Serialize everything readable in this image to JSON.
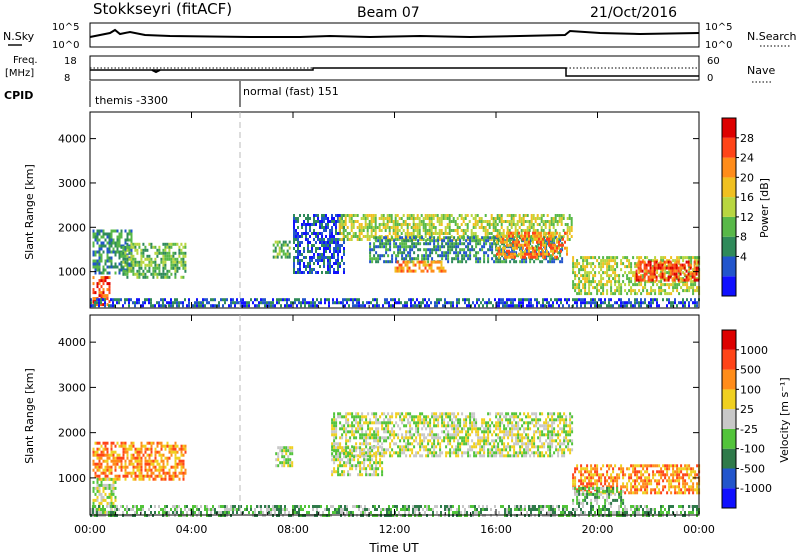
{
  "header": {
    "station": "Stokkseyri (fitACF)",
    "beam": "Beam 07",
    "date": "21/Oct/2016"
  },
  "sky_panel": {
    "left_label": "N.Sky",
    "left_ticks": [
      "10^5",
      "10^0"
    ],
    "right_ticks": [
      "10^5",
      "10^0"
    ],
    "right_label": "N.Search"
  },
  "freq_panel": {
    "left_label_1": "Freq.",
    "left_label_2": "[MHz]",
    "left_ticks": [
      "18",
      "8"
    ],
    "right_ticks": [
      "60",
      "0"
    ],
    "right_label": "Nave"
  },
  "cpid": {
    "label": "CPID",
    "segments": [
      {
        "label": "themis -3300",
        "start_h": 0,
        "end_h": 6
      },
      {
        "label": "normal (fast) 151",
        "start_h": 6,
        "end_h": 24
      }
    ]
  },
  "chart_data": [
    {
      "type": "heatmap",
      "panel": "power",
      "ylabel": "Slant Range [km]",
      "yticks": [
        1000,
        2000,
        3000,
        4000
      ],
      "xticks": [
        "00:00",
        "04:00",
        "08:00",
        "12:00",
        "16:00",
        "20:00",
        "00:00"
      ],
      "xrange_hours": [
        0,
        24
      ],
      "yrange_km": [
        180,
        4600
      ],
      "colorbar": {
        "label": "Power [dB]",
        "ticks": [
          "28",
          "24",
          "20",
          "16",
          "12",
          "8",
          "4"
        ],
        "colors": [
          "#1010ff",
          "#2255cc",
          "#2f8a5a",
          "#58b848",
          "#b8d640",
          "#f0c020",
          "#ff8c1a",
          "#ff4418",
          "#dd0000"
        ]
      },
      "echo_regions": [
        {
          "t0": 0.1,
          "t1": 1.6,
          "r0": 1000,
          "r1": 1950,
          "level": 2
        },
        {
          "t0": 1.2,
          "t1": 3.8,
          "r0": 900,
          "r1": 1650,
          "level": 3
        },
        {
          "t0": 0.1,
          "t1": 0.8,
          "r0": 250,
          "r1": 900,
          "level": 7
        },
        {
          "t0": 7.2,
          "t1": 7.9,
          "r0": 1300,
          "r1": 1700,
          "level": 3
        },
        {
          "t0": 8.0,
          "t1": 10.0,
          "r0": 1000,
          "r1": 2300,
          "level": 1
        },
        {
          "t0": 9.8,
          "t1": 19.0,
          "r0": 1750,
          "r1": 2300,
          "level": 4
        },
        {
          "t0": 11.0,
          "t1": 18.6,
          "r0": 1200,
          "r1": 1800,
          "level": 2
        },
        {
          "t0": 12.0,
          "t1": 14.0,
          "r0": 1000,
          "r1": 1250,
          "level": 6
        },
        {
          "t0": 16.0,
          "t1": 18.8,
          "r0": 1350,
          "r1": 1900,
          "level": 6
        },
        {
          "t0": 19.0,
          "t1": 24.0,
          "r0": 500,
          "r1": 1350,
          "level": 4
        },
        {
          "t0": 21.5,
          "t1": 24.0,
          "r0": 800,
          "r1": 1250,
          "level": 7
        },
        {
          "t0": 0.0,
          "t1": 24.0,
          "r0": 200,
          "r1": 400,
          "level": 1
        }
      ]
    },
    {
      "type": "heatmap",
      "panel": "velocity",
      "ylabel": "Slant Range [km]",
      "yticks": [
        1000,
        2000,
        3000,
        4000
      ],
      "xticks": [
        "00:00",
        "04:00",
        "08:00",
        "12:00",
        "16:00",
        "20:00",
        "00:00"
      ],
      "xlabel": "Time UT",
      "xrange_hours": [
        0,
        24
      ],
      "yrange_km": [
        180,
        4600
      ],
      "colorbar": {
        "label": "Velocity [m s⁻¹]",
        "ticks": [
          "1000",
          "500",
          "100",
          "25",
          "-25",
          "-100",
          "-500",
          "-1000"
        ],
        "colors": [
          "#1010ff",
          "#2255cc",
          "#2f7a4a",
          "#52c43a",
          "#c8c8c8",
          "#f0d020",
          "#ff8c1a",
          "#ff4418",
          "#dd0000"
        ]
      },
      "echo_regions": [
        {
          "t0": 0.1,
          "t1": 3.8,
          "r0": 1000,
          "r1": 1800,
          "level": 6
        },
        {
          "t0": 0.1,
          "t1": 1.0,
          "r0": 250,
          "r1": 1000,
          "level": 4
        },
        {
          "t0": 7.3,
          "t1": 8.0,
          "r0": 1300,
          "r1": 1700,
          "level": 4
        },
        {
          "t0": 9.5,
          "t1": 19.0,
          "r0": 1500,
          "r1": 2450,
          "level": 4
        },
        {
          "t0": 9.5,
          "t1": 11.5,
          "r0": 1100,
          "r1": 1700,
          "level": 4
        },
        {
          "t0": 19.0,
          "t1": 24.0,
          "r0": 700,
          "r1": 1300,
          "level": 6
        },
        {
          "t0": 19.0,
          "t1": 21.0,
          "r0": 450,
          "r1": 800,
          "level": 3
        },
        {
          "t0": 0.0,
          "t1": 24.0,
          "r0": 200,
          "r1": 400,
          "level": 3
        }
      ]
    }
  ]
}
